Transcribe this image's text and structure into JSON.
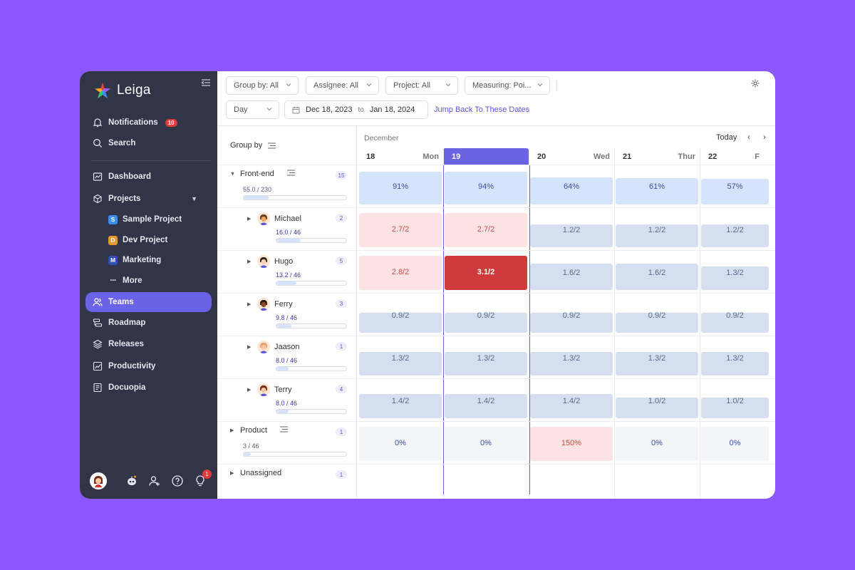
{
  "app": {
    "name": "Leiga"
  },
  "sidebar": {
    "notifications": {
      "label": "Notifications",
      "count": "10"
    },
    "search": "Search",
    "dashboard": "Dashboard",
    "projects": "Projects",
    "projects_list": [
      {
        "badge": "S",
        "label": "Sample Project",
        "color": "#3a8ef6"
      },
      {
        "badge": "D",
        "label": "Dev Project",
        "color": "#e69a2e"
      },
      {
        "badge": "M",
        "label": "Marketing",
        "color": "#2f4fb8"
      }
    ],
    "more": "More",
    "teams": "Teams",
    "roadmap": "Roadmap",
    "releases": "Releases",
    "productivity": "Productivity",
    "docuopia": "Docuopia",
    "tips_badge": "1"
  },
  "toolbar": {
    "group_by": "Group by: All",
    "assignee": "Assignee: All",
    "project": "Project: All",
    "measuring": "Measuring: Poi...",
    "granularity": "Day",
    "date_from": "Dec 18, 2023",
    "date_to_label": "to",
    "date_to": "Jan 18, 2024",
    "jump_back": "Jump Back To These Dates"
  },
  "calendar": {
    "group_by_header": "Group by",
    "month": "December",
    "today": "Today",
    "days": [
      {
        "num": "18",
        "wd": "Mon"
      },
      {
        "num": "19",
        "wd": ""
      },
      {
        "num": "20",
        "wd": "Wed"
      },
      {
        "num": "21",
        "wd": "Thur"
      },
      {
        "num": "22",
        "wd": "F"
      }
    ]
  },
  "rows": [
    {
      "name": "Front-end",
      "count": "15",
      "stat": "55.0 / 230",
      "fill": 0.24,
      "cells": [
        "91%",
        "94%",
        "64%",
        "61%",
        "57%"
      ],
      "fills": [
        0.91,
        0.94,
        0.64,
        0.61,
        0.57
      ]
    },
    {
      "name": "Michael",
      "count": "2",
      "stat": "16.0 / 46",
      "fill": 0.35,
      "cells": [
        "2.7/2",
        "2.7/2",
        "1.2/2",
        "1.2/2",
        "1.2/2"
      ],
      "fills": [
        1,
        1,
        0.6,
        0.6,
        0.6
      ]
    },
    {
      "name": "Hugo",
      "count": "5",
      "stat": "13.2 / 46",
      "fill": 0.29,
      "cells": [
        "2.8/2",
        "3.1/2",
        "1.6/2",
        "1.6/2",
        "1.3/2"
      ],
      "fills": [
        1,
        1,
        0.8,
        0.8,
        0.65
      ]
    },
    {
      "name": "Ferry",
      "count": "3",
      "stat": "9.8 / 46",
      "fill": 0.21,
      "cells": [
        "0.9/2",
        "0.9/2",
        "0.9/2",
        "0.9/2",
        "0.9/2"
      ],
      "fills": [
        0.45,
        0.45,
        0.45,
        0.45,
        0.45
      ]
    },
    {
      "name": "Jaason",
      "count": "1",
      "stat": "8.0 / 46",
      "fill": 0.17,
      "cells": [
        "1.3/2",
        "1.3/2",
        "1.3/2",
        "1.3/2",
        "1.3/2"
      ],
      "fills": [
        0.65,
        0.65,
        0.65,
        0.65,
        0.65
      ]
    },
    {
      "name": "Terry",
      "count": "4",
      "stat": "8.0 / 46",
      "fill": 0.17,
      "cells": [
        "1.4/2",
        "1.4/2",
        "1.4/2",
        "1.0/2",
        "1.0/2"
      ],
      "fills": [
        0.7,
        0.7,
        0.7,
        0.5,
        0.5
      ]
    },
    {
      "name": "Product",
      "count": "1",
      "stat": "3 / 46",
      "fill": 0.07,
      "cells": [
        "0%",
        "0%",
        "150%",
        "0%",
        "0%"
      ],
      "fills": [
        0,
        0,
        1,
        0,
        0
      ]
    },
    {
      "name": "Unassigned",
      "count": "1"
    }
  ],
  "colors": {
    "accent": "#6a63e2",
    "sidebar_bg": "#323447",
    "cell_blue": "#d6e4fb",
    "cell_grey": "#d5dff0",
    "cell_over": "#fde3e3",
    "cell_critical": "#cf3a3a",
    "cell_empty": "#f3f5f9"
  }
}
